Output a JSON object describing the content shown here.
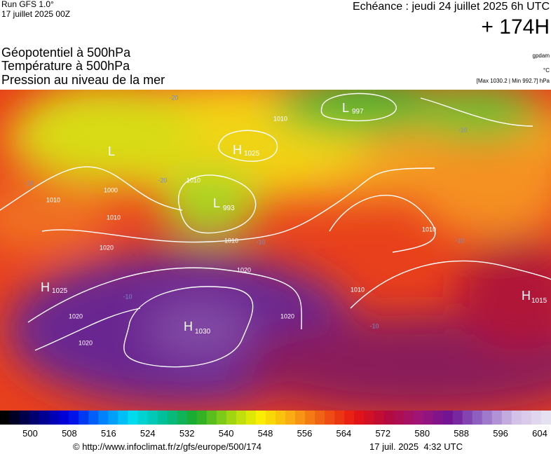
{
  "header": {
    "run": "Run GFS 1.0°",
    "run_date": "17 juillet 2025 00Z",
    "echeance": "Echéance : jeudi 24 juillet 2025 6h UTC",
    "lead": "+ 174H",
    "titles": [
      "Géopotentiel à 500hPa",
      "Température à 500hPa",
      "Pression au niveau de la mer"
    ],
    "notes": [
      "gpdam",
      "°C",
      "[Max 1030.2 | Min 992.7] hPa"
    ]
  },
  "map": {
    "centers": [
      {
        "letter": "L",
        "value": "997"
      },
      {
        "letter": "H",
        "value": "1025"
      },
      {
        "letter": "L"
      },
      {
        "letter": "L",
        "value": "993"
      },
      {
        "letter": "H",
        "value": "1025"
      },
      {
        "letter": "H",
        "value": "1030"
      },
      {
        "letter": "H",
        "value": "1015"
      }
    ],
    "contour_labels": [
      "1010",
      "1010",
      "1000",
      "1010",
      "1010",
      "1020",
      "1020",
      "1020",
      "1020",
      "1010",
      "1010",
      "1020",
      "1010",
      "-10",
      "-20",
      "-20",
      "-10",
      "-10",
      "-10",
      "-10",
      "-10"
    ]
  },
  "colorbar": {
    "labels": [
      500,
      508,
      516,
      524,
      532,
      540,
      548,
      556,
      564,
      572,
      580,
      588,
      596,
      604
    ]
  },
  "footer": {
    "url": "© http://www.infoclimat.fr/z/gfs/europe/500/174",
    "time": "17 juil. 2025  4:32 UTC"
  }
}
